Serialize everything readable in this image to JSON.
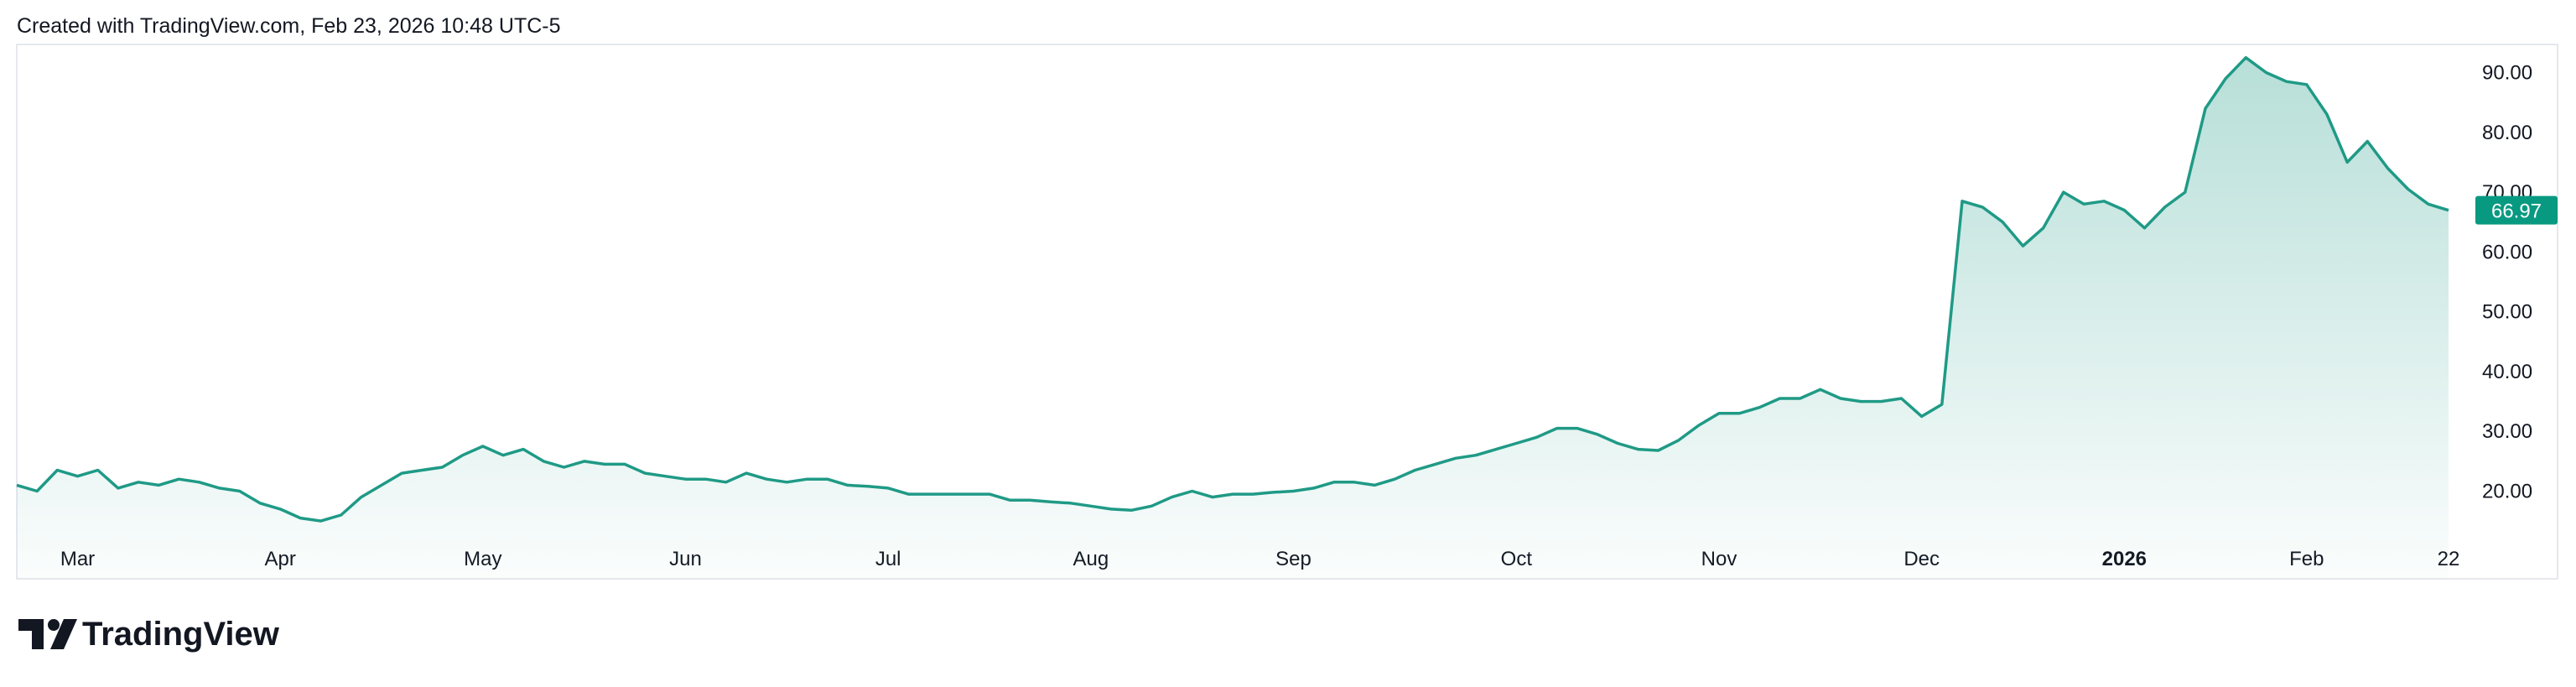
{
  "header": {
    "text": "Created with TradingView.com, Feb 23, 2026 10:48 UTC-5"
  },
  "footer": {
    "brand": "TradingView"
  },
  "chart_data": {
    "type": "area",
    "categories": [
      null,
      null,
      null,
      "Mar",
      null,
      null,
      null,
      null,
      null,
      null,
      null,
      null,
      null,
      "Apr",
      null,
      null,
      null,
      null,
      null,
      null,
      null,
      null,
      null,
      "May",
      null,
      null,
      null,
      null,
      null,
      null,
      null,
      null,
      null,
      "Jun",
      null,
      null,
      null,
      null,
      null,
      null,
      null,
      null,
      null,
      "Jul",
      null,
      null,
      null,
      null,
      null,
      null,
      null,
      null,
      null,
      "Aug",
      null,
      null,
      null,
      null,
      null,
      null,
      null,
      null,
      null,
      "Sep",
      null,
      null,
      null,
      null,
      null,
      null,
      null,
      null,
      null,
      null,
      "Oct",
      null,
      null,
      null,
      null,
      null,
      null,
      null,
      null,
      null,
      "Nov",
      null,
      null,
      null,
      null,
      null,
      null,
      null,
      null,
      null,
      "Dec",
      null,
      null,
      null,
      null,
      null,
      null,
      null,
      null,
      null,
      "2026",
      null,
      null,
      null,
      null,
      null,
      null,
      null,
      null,
      "Feb",
      null,
      null,
      null,
      null,
      null,
      null,
      "22"
    ],
    "series": [
      {
        "color": "#1f9a86",
        "values": [
          21,
          20,
          23.5,
          22.5,
          23.5,
          20.5,
          21.5,
          21,
          22,
          21.5,
          20.5,
          20,
          18,
          17,
          15.5,
          15,
          16,
          19,
          21,
          23,
          23.5,
          24,
          26,
          27.5,
          26,
          27,
          25,
          24,
          25,
          24.5,
          24.5,
          23,
          22.5,
          22,
          22,
          21.5,
          23,
          22,
          21.5,
          22,
          22,
          21,
          20.8,
          20.5,
          19.5,
          19.5,
          19.5,
          19.5,
          19.5,
          18.5,
          18.5,
          18.2,
          18,
          17.5,
          17,
          16.8,
          17.5,
          19,
          20,
          19,
          19.5,
          19.5,
          19.8,
          20,
          20.5,
          21.5,
          21.5,
          21,
          22,
          23.5,
          24.5,
          25.5,
          26,
          27,
          28,
          29,
          30.5,
          30.5,
          29.5,
          28,
          27,
          26.8,
          28.5,
          31,
          33,
          33,
          34,
          35.5,
          35.5,
          37,
          35.5,
          35,
          35,
          35.5,
          32.5,
          34.5,
          68.5,
          67.5,
          65,
          61,
          64,
          70,
          68,
          68.5,
          67,
          64,
          67.5,
          70,
          84,
          89,
          92.5,
          90,
          88.5,
          88,
          83,
          75,
          78.5,
          74,
          70.5,
          68,
          66.97
        ]
      }
    ],
    "ylim": [
      15.3,
      94.7
    ],
    "yticks": [
      {
        "value": 20,
        "label": "20.00"
      },
      {
        "value": 30,
        "label": "30.00"
      },
      {
        "value": 40,
        "label": "40.00"
      },
      {
        "value": 50,
        "label": "50.00"
      },
      {
        "value": 60,
        "label": "60.00"
      },
      {
        "value": 70,
        "label": "70.00"
      },
      {
        "value": 80,
        "label": "80.00"
      },
      {
        "value": 90,
        "label": "90.00"
      }
    ],
    "tag_color": "#089981"
  }
}
